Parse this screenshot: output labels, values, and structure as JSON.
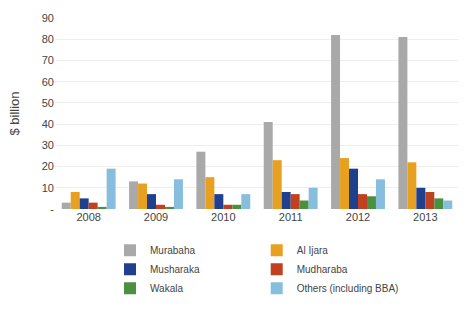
{
  "chart_data": {
    "type": "bar",
    "categories": [
      "2008",
      "2009",
      "2010",
      "2011",
      "2012",
      "2013"
    ],
    "series": [
      {
        "name": "Murabaha",
        "color": "#A9A9A9",
        "values": [
          3,
          13,
          27,
          41,
          82,
          81
        ]
      },
      {
        "name": "Al Ijara",
        "color": "#E8A020",
        "values": [
          8,
          12,
          15,
          23,
          24,
          22
        ]
      },
      {
        "name": "Musharaka",
        "color": "#1F3F8F",
        "values": [
          5,
          7,
          7,
          8,
          19,
          10
        ]
      },
      {
        "name": "Mudharaba",
        "color": "#C04020",
        "values": [
          3,
          2,
          2,
          7,
          7,
          8
        ]
      },
      {
        "name": "Wakala",
        "color": "#4A9040",
        "values": [
          1,
          1,
          2,
          4,
          6,
          5
        ]
      },
      {
        "name": "Others (including BBA)",
        "color": "#87BEDE",
        "values": [
          19,
          14,
          7,
          10,
          14,
          4
        ]
      }
    ],
    "ylabel": "$ billion",
    "ylim": [
      0,
      90
    ],
    "yticks": [
      {
        "value": 0,
        "label": "-"
      },
      10,
      20,
      30,
      40,
      50,
      60,
      70,
      80,
      90
    ],
    "grid": true,
    "legend": "bottom"
  }
}
